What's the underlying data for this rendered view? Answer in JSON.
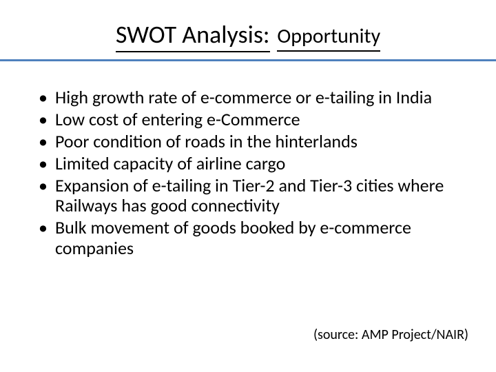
{
  "colors": {
    "background": "#ffffff",
    "text": "#000000",
    "rule": "#4f81bd",
    "underline": "#000000"
  },
  "typography": {
    "title_fontsize": 36,
    "subtitle_fontsize": 30,
    "bullet_fontsize": 26,
    "source_fontsize": 20,
    "font_family": "Calibri"
  },
  "title": {
    "main": "SWOT Analysis:",
    "sub": "Opportunity"
  },
  "bullets": [
    "High growth rate of e-commerce or e-tailing in India",
    "Low cost of entering e-Commerce",
    "Poor condition of roads in the hinterlands",
    "Limited capacity of airline cargo",
    "Expansion of e-tailing in Tier-2 and Tier-3 cities where Railways has good connectivity",
    "Bulk movement of goods booked by e-commerce companies"
  ],
  "source": "(source: AMP Project/NAIR)"
}
